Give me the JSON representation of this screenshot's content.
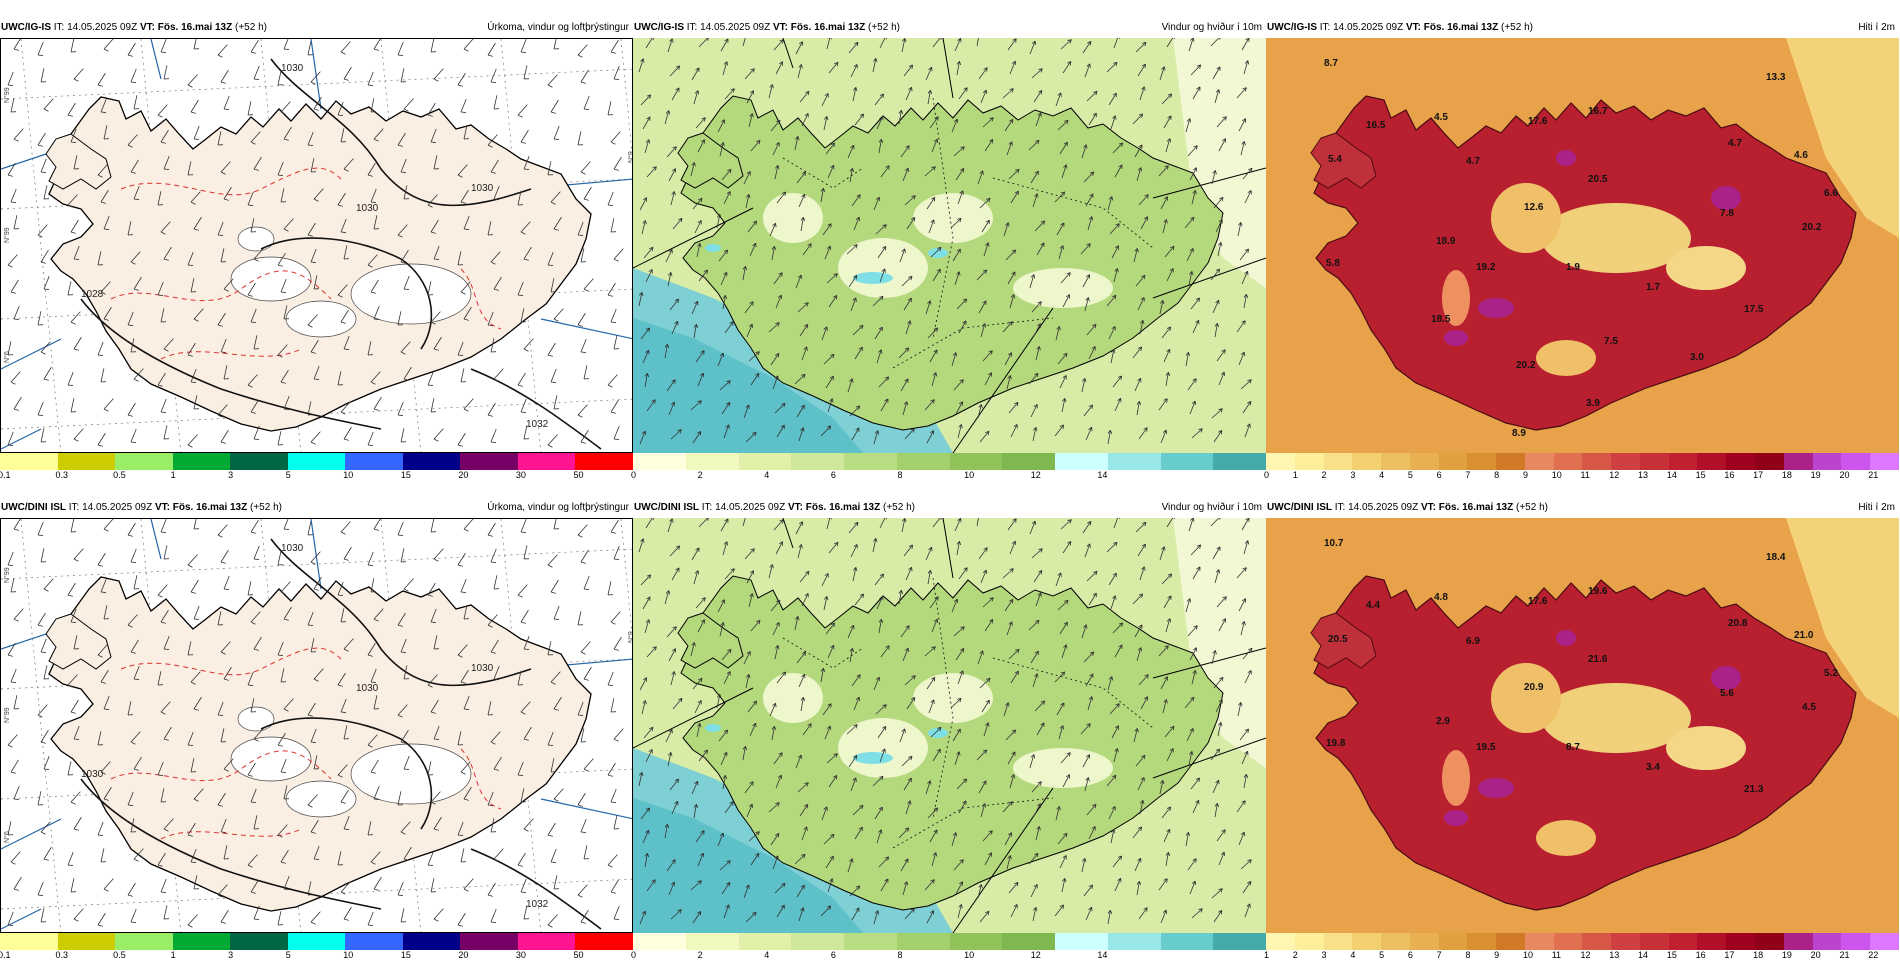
{
  "panels": [
    {
      "id": "igis-precip",
      "model": "UWC/IG-IS",
      "it_label": "IT:",
      "it": "14.05.2025 09Z",
      "vt_label": "VT:",
      "vt": "Fös. 16.mai 13Z",
      "lead": "(+52 h)",
      "title": "Úrkoma, vindur og loftþrýstingur",
      "colorbar": [
        "#ffff99",
        "#cccc00",
        "#99ee66",
        "#00aa33",
        "#006644",
        "#00ffee",
        "#3366ff",
        "#000088",
        "#770066",
        "#ff1493",
        "#ff0000"
      ],
      "ticks": [
        "0.1",
        "0.3",
        "0.5",
        "1",
        "3",
        "5",
        "10",
        "15",
        "20",
        "30",
        "50"
      ],
      "labels": [
        "1030",
        "1030",
        "1030",
        "1028",
        "1032"
      ],
      "side": [
        "N°99",
        "N°99",
        "N°6",
        "N°9"
      ]
    },
    {
      "id": "igis-wind",
      "model": "UWC/IG-IS",
      "it_label": "IT:",
      "it": "14.05.2025 09Z",
      "vt_label": "VT:",
      "vt": "Fös. 16.mai 13Z",
      "lead": "(+52 h)",
      "title": "Vindur og hviður í 10m",
      "colorbar": [
        "#ffffe0",
        "#f0f8c0",
        "#e0f0a8",
        "#cde89a",
        "#b8dc82",
        "#a4d06c",
        "#90c45a",
        "#80b850",
        "#ccffff",
        "#99e6e6",
        "#66cccc",
        "#44aaaa"
      ],
      "ticks": [
        "0",
        "2",
        "4",
        "6",
        "8",
        "10",
        "12",
        "14"
      ]
    },
    {
      "id": "igis-temp",
      "model": "UWC/IG-IS",
      "it_label": "IT:",
      "it": "14.05.2025 09Z",
      "vt_label": "VT:",
      "vt": "Fös. 16.mai 13Z",
      "lead": "(+52 h)",
      "title": "Hiti í 2m",
      "colorbar": [
        "#fff7b0",
        "#ffee99",
        "#f8e08a",
        "#f2d070",
        "#ecc060",
        "#e8b050",
        "#e0a040",
        "#d89030",
        "#d07a28",
        "#e88860",
        "#e07050",
        "#d85848",
        "#d04040",
        "#c83038",
        "#c02030",
        "#b01028",
        "#a00020",
        "#900018",
        "#aa2288",
        "#bb44cc",
        "#cc55ee",
        "#dd77ff"
      ],
      "ticks": [
        "0",
        "1",
        "2",
        "3",
        "4",
        "5",
        "6",
        "7",
        "8",
        "9",
        "10",
        "11",
        "12",
        "13",
        "14",
        "15",
        "16",
        "17",
        "18",
        "19",
        "20",
        "21"
      ],
      "values": [
        "8.7",
        "16.5",
        "4.5",
        "5.4",
        "4.7",
        "17.6",
        "16.7",
        "13.3",
        "12.6",
        "20.5",
        "4.7",
        "4.6",
        "7.8",
        "6.6",
        "18.9",
        "20.2",
        "5.8",
        "19.2",
        "1.9",
        "1.7",
        "17.5",
        "18.5",
        "7.5",
        "3.0",
        "20.2",
        "3.9",
        "8.9"
      ]
    },
    {
      "id": "dini-precip",
      "model": "UWC/DINI ISL",
      "it_label": "IT:",
      "it": "14.05.2025 09Z",
      "vt_label": "VT:",
      "vt": "Fös. 16.mai 13Z",
      "lead": "(+52 h)",
      "title": "Úrkoma, vindur og loftþrýstingur",
      "colorbar": [
        "#ffff99",
        "#cccc00",
        "#99ee66",
        "#00aa33",
        "#006644",
        "#00ffee",
        "#3366ff",
        "#000088",
        "#770066",
        "#ff1493",
        "#ff0000"
      ],
      "ticks": [
        "0.1",
        "0.3",
        "0.5",
        "1",
        "3",
        "5",
        "10",
        "15",
        "20",
        "30",
        "50"
      ],
      "labels": [
        "1030",
        "1030",
        "1030",
        "1030",
        "1032"
      ],
      "side": [
        "N°99",
        "N°99",
        "N°6",
        "N°9"
      ]
    },
    {
      "id": "dini-wind",
      "model": "UWC/DINI ISL",
      "it_label": "IT:",
      "it": "14.05.2025 09Z",
      "vt_label": "VT:",
      "vt": "Fös. 16.mai 13Z",
      "lead": "(+52 h)",
      "title": "Vindur og hviður í 10m",
      "colorbar": [
        "#ffffe0",
        "#f0f8c0",
        "#e0f0a8",
        "#cde89a",
        "#b8dc82",
        "#a4d06c",
        "#90c45a",
        "#80b850",
        "#ccffff",
        "#99e6e6",
        "#66cccc",
        "#44aaaa"
      ],
      "ticks": [
        "0",
        "2",
        "4",
        "6",
        "8",
        "10",
        "12",
        "14"
      ]
    },
    {
      "id": "dini-temp",
      "model": "UWC/DINI ISL",
      "it_label": "IT:",
      "it": "14.05.2025 09Z",
      "vt_label": "VT:",
      "vt": "Fös. 16.mai 13Z",
      "lead": "(+52 h)",
      "title": "Hiti í 2m",
      "colorbar": [
        "#fff7b0",
        "#ffee99",
        "#f8e08a",
        "#f2d070",
        "#ecc060",
        "#e8b050",
        "#e0a040",
        "#d89030",
        "#d07a28",
        "#e88860",
        "#e07050",
        "#d85848",
        "#d04040",
        "#c83038",
        "#c02030",
        "#b01028",
        "#a00020",
        "#900018",
        "#aa2288",
        "#bb44cc",
        "#cc55ee",
        "#dd77ff"
      ],
      "ticks": [
        "1",
        "2",
        "3",
        "4",
        "5",
        "6",
        "7",
        "8",
        "9",
        "10",
        "11",
        "12",
        "13",
        "14",
        "15",
        "16",
        "17",
        "18",
        "19",
        "20",
        "21",
        "22"
      ],
      "values": [
        "10.7",
        "4.4",
        "4.8",
        "20.5",
        "6.9",
        "17.6",
        "19.6",
        "18.4",
        "20.9",
        "21.6",
        "20.8",
        "21.0",
        "5.6",
        "5.2",
        "2.9",
        "4.5",
        "19.8",
        "19.5",
        "8.7",
        "3.4",
        "21.3"
      ]
    }
  ]
}
